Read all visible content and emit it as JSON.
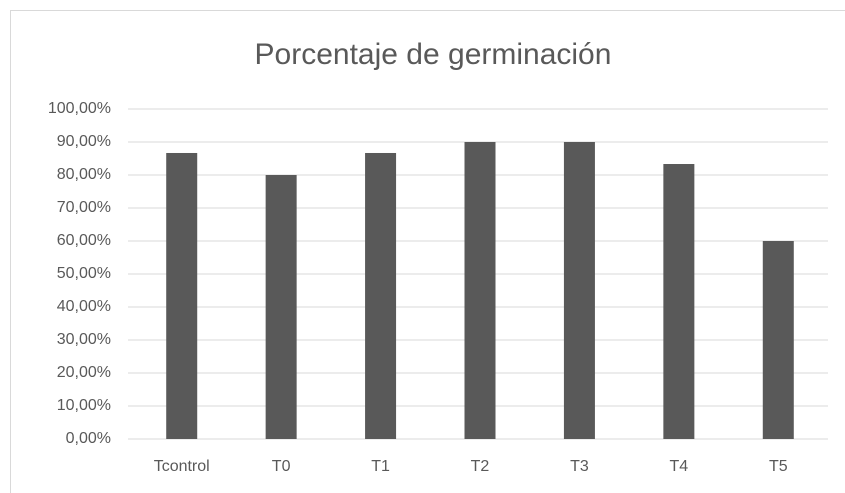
{
  "chart_data": {
    "type": "bar",
    "title": "Porcentaje de germinación",
    "categories": [
      "Tcontrol",
      "T0",
      "T1",
      "T2",
      "T3",
      "T4",
      "T5"
    ],
    "values": [
      86.67,
      80,
      86.67,
      90,
      90,
      83.33,
      60
    ],
    "color": "#595959",
    "ylim": [
      0,
      100
    ],
    "yticks": [
      {
        "value": 0,
        "label": "0,00%"
      },
      {
        "value": 10,
        "label": "10,00%"
      },
      {
        "value": 20,
        "label": "20,00%"
      },
      {
        "value": 30,
        "label": "30,00%"
      },
      {
        "value": 40,
        "label": "40,00%"
      },
      {
        "value": 50,
        "label": "50,00%"
      },
      {
        "value": 60,
        "label": "60,00%"
      },
      {
        "value": 70,
        "label": "70,00%"
      },
      {
        "value": 80,
        "label": "80,00%"
      },
      {
        "value": 90,
        "label": "90,00%"
      },
      {
        "value": 100,
        "label": "100,00%"
      }
    ],
    "grid": true
  }
}
